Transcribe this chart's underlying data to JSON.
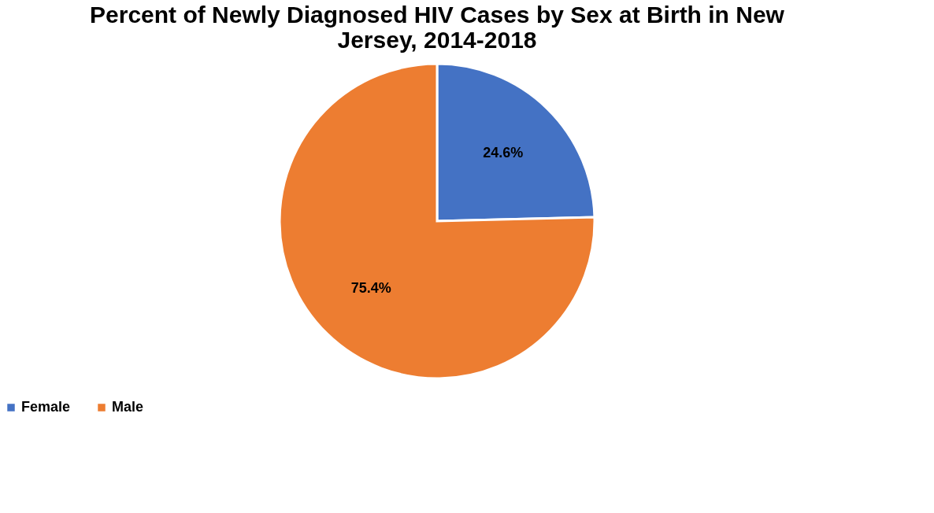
{
  "chart_data": {
    "type": "pie",
    "title": "Percent of Newly Diagnosed HIV Cases by Sex at Birth in New Jersey, 2014-2018",
    "categories": [
      "Female",
      "Male"
    ],
    "values": [
      24.6,
      75.4
    ],
    "colors": [
      "#4472c4",
      "#ed7d31"
    ],
    "value_labels": [
      "24.6%",
      "75.4%"
    ],
    "legend": "bottom"
  }
}
